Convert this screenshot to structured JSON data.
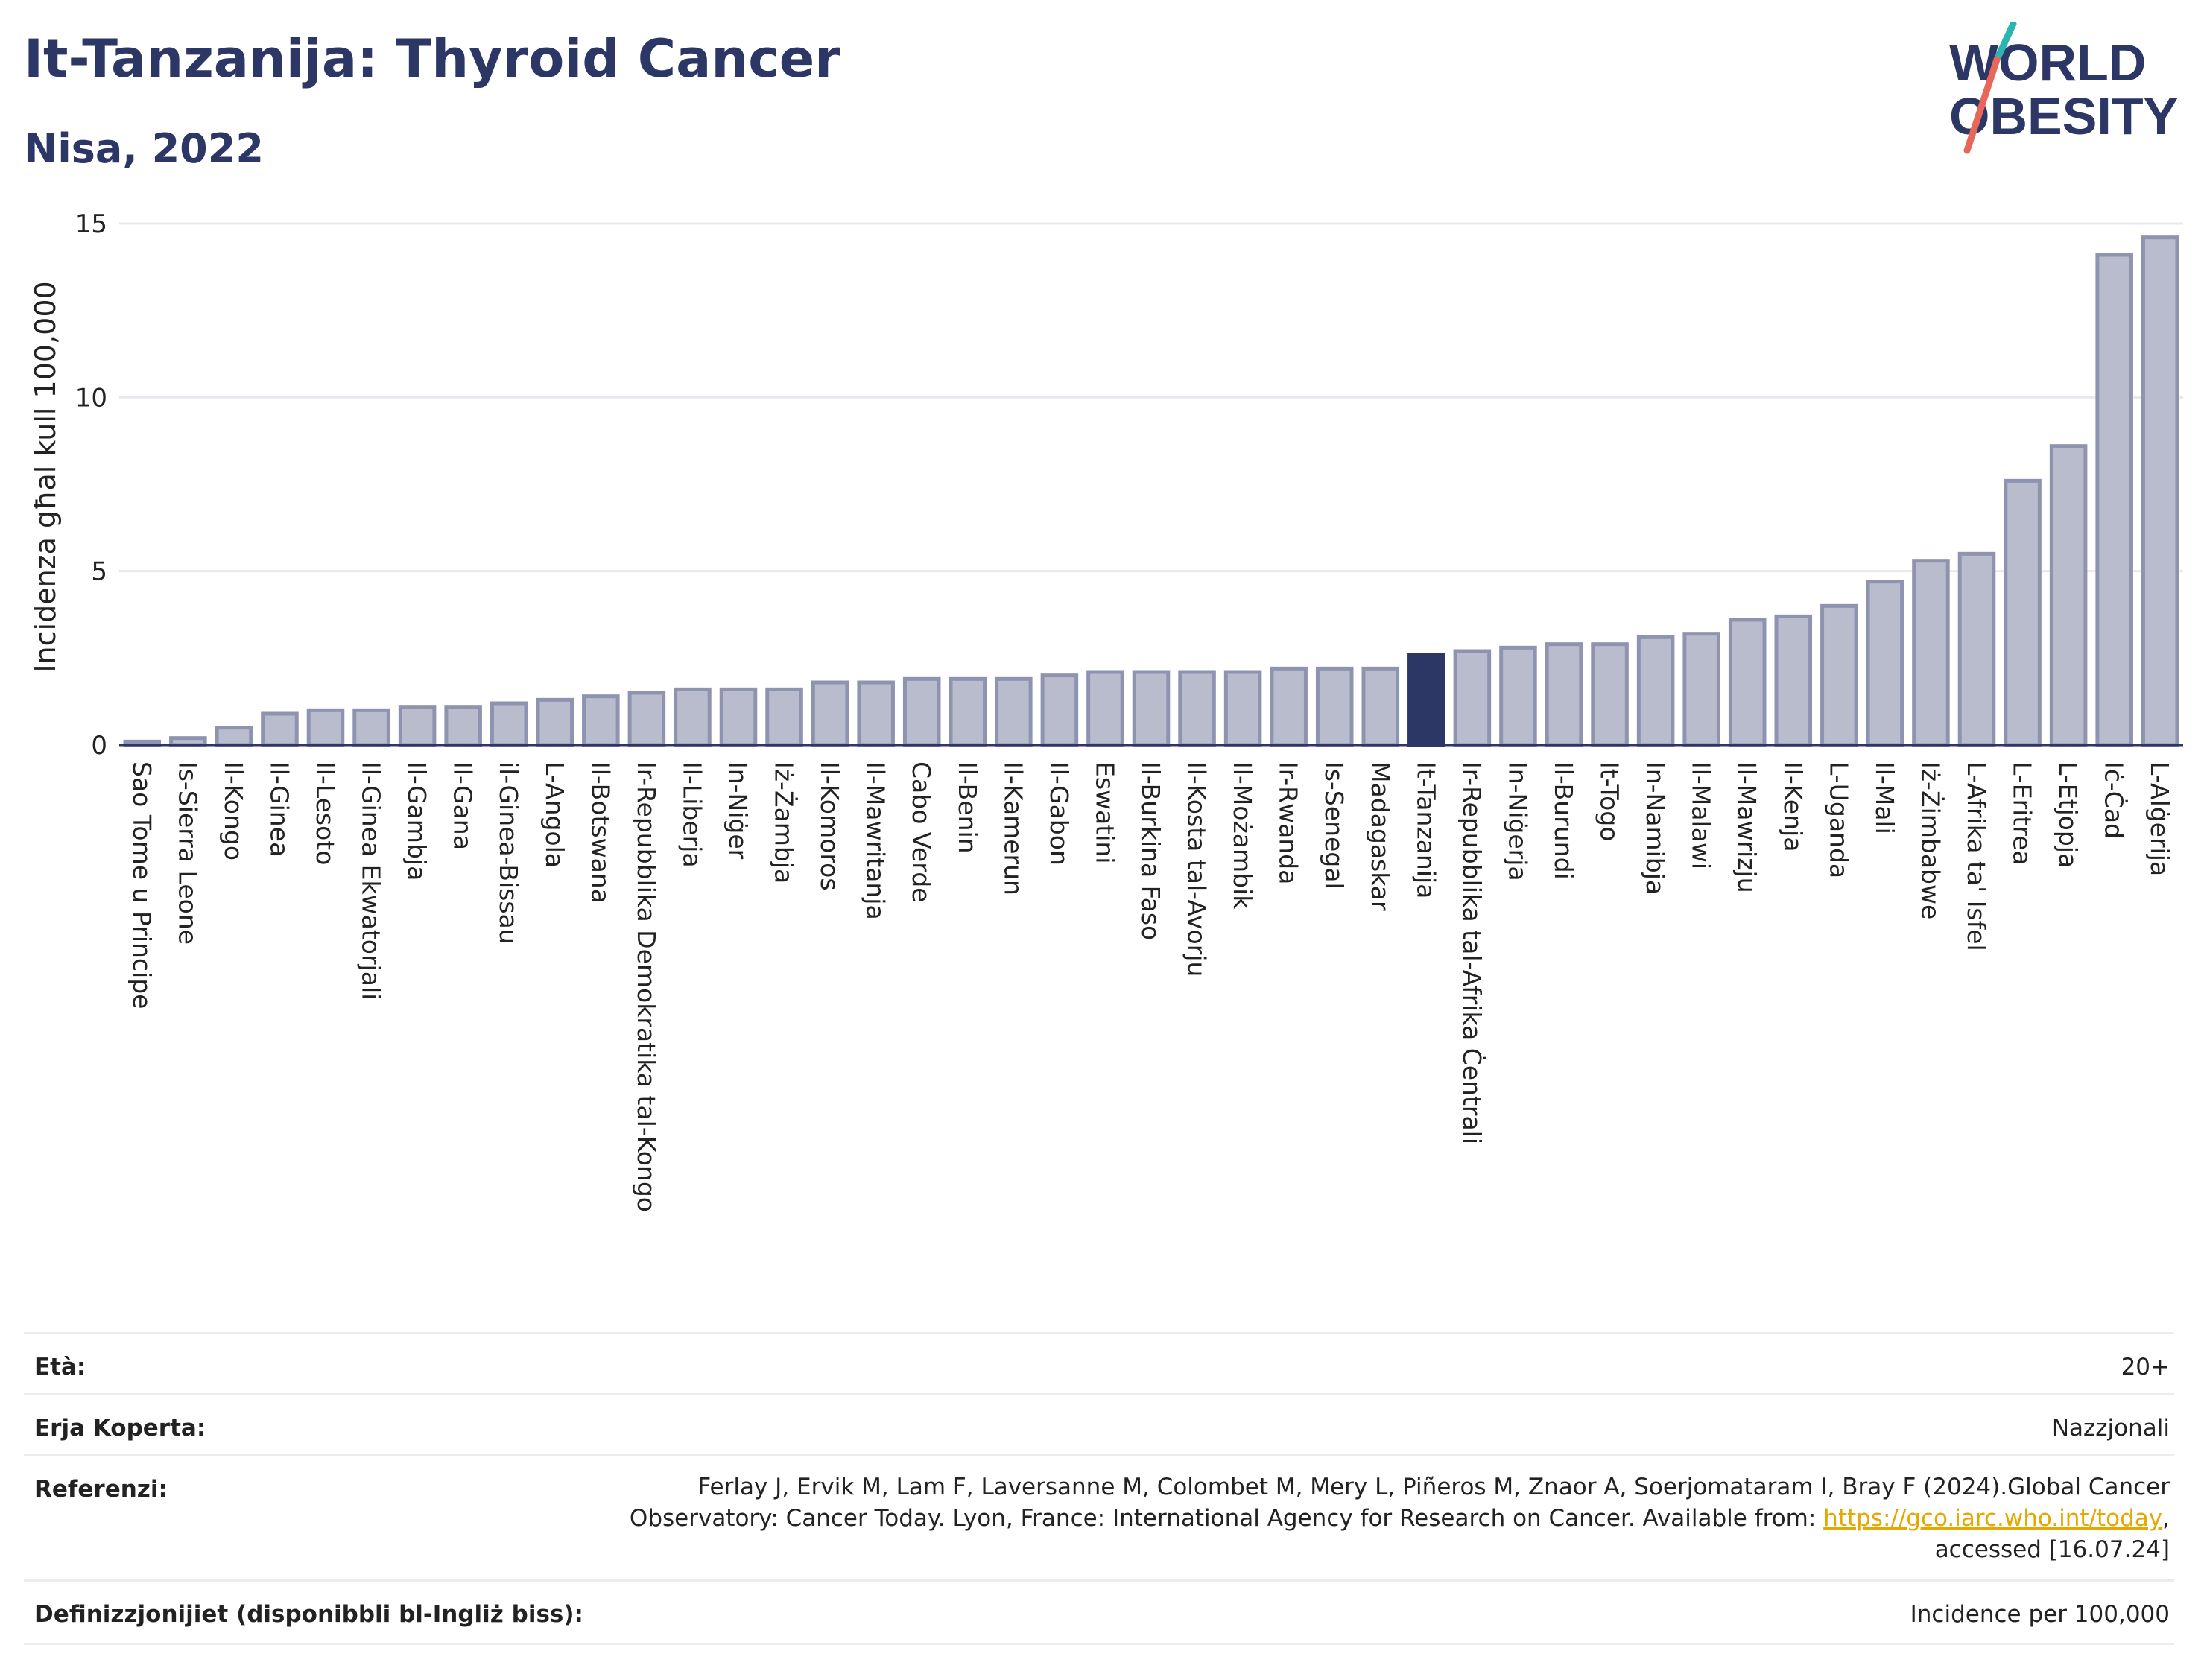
{
  "header": {
    "title": "It-Tanzanija: Thyroid Cancer",
    "subtitle": "Nisa, 2022"
  },
  "logo": {
    "line1": "WØRLD",
    "line2": "OBESITY",
    "line1_display": "WORLD",
    "color_text": "#2d3766",
    "color_slash_top": "#2bb5b0",
    "color_slash_bottom": "#e8675a"
  },
  "chart_data": {
    "type": "bar",
    "ylabel": "Incidenza għal kull 100,000",
    "xlabel": "",
    "ylim": [
      0,
      15
    ],
    "yticks": [
      0,
      5,
      10,
      15
    ],
    "grid": true,
    "highlight": "It-Tanzanija",
    "colors": {
      "bar": "#b8bccd",
      "bar_edge": "#8e94b0",
      "highlight": "#2d3766",
      "grid": "#e8e8ee"
    },
    "categories": [
      "Sao Tome u Principe",
      "Is-Sierra Leone",
      "Il-Kongo",
      "Il-Ginea",
      "Il-Lesoto",
      "Il-Ginea Ekwatorjali",
      "Il-Gambja",
      "Il-Gana",
      "il-Ginea-Bissau",
      "L-Angola",
      "Il-Botswana",
      "Ir-Repubblika Demokratika tal-Kongo",
      "Il-Liberja",
      "In-Niġer",
      "Iż-Żambja",
      "Il-Komoros",
      "Il-Mawritanja",
      "Cabo Verde",
      "Il-Benin",
      "Il-Kamerun",
      "Il-Gabon",
      "Eswatini",
      "Il-Burkina Faso",
      "Il-Kosta tal-Avorju",
      "Il-Możambik",
      "Ir-Rwanda",
      "Is-Senegal",
      "Madagaskar",
      "It-Tanzanija",
      "Ir-Repubblika tal-Afrika Ċentrali",
      "In-Niġerja",
      "Il-Burundi",
      "It-Togo",
      "In-Namibja",
      "Il-Malawi",
      "Il-Mawrizju",
      "Il-Kenja",
      "L-Uganda",
      "Il-Mali",
      "Iż-Żimbabwe",
      "L-Afrika ta' Isfel",
      "L-Eritrea",
      "L-Etjopja",
      "Iċ-Ċad",
      "L-Alġerija"
    ],
    "values": [
      0.1,
      0.2,
      0.5,
      0.9,
      1.0,
      1.0,
      1.1,
      1.1,
      1.2,
      1.3,
      1.4,
      1.5,
      1.6,
      1.6,
      1.6,
      1.8,
      1.8,
      1.9,
      1.9,
      1.9,
      2.0,
      2.1,
      2.1,
      2.1,
      2.1,
      2.2,
      2.2,
      2.2,
      2.6,
      2.7,
      2.8,
      2.9,
      2.9,
      3.1,
      3.2,
      3.6,
      3.7,
      4.0,
      4.7,
      5.3,
      5.5,
      7.6,
      8.6,
      14.1,
      14.6
    ]
  },
  "info": {
    "age_label": "Età:",
    "age_value": "20+",
    "area_label": "Erja Koperta:",
    "area_value": "Nazzjonali",
    "ref_label": "Referenzi:",
    "ref_text_1": "Ferlay J, Ervik M, Lam F, Laversanne M, Colombet M, Mery L, Piñeros M, Znaor A, Soerjomataram I, Bray F (2024).Global Cancer Observatory: Cancer Today. Lyon, France: International Agency for Research on Cancer. Available from: ",
    "ref_link": "https://gco.iarc.who.int/today",
    "ref_text_2": ", accessed [16.07.24]",
    "def_label": "Definizzjonijiet (disponibbli bl-Ingliż biss):",
    "def_value": "Incidence per 100,000"
  }
}
